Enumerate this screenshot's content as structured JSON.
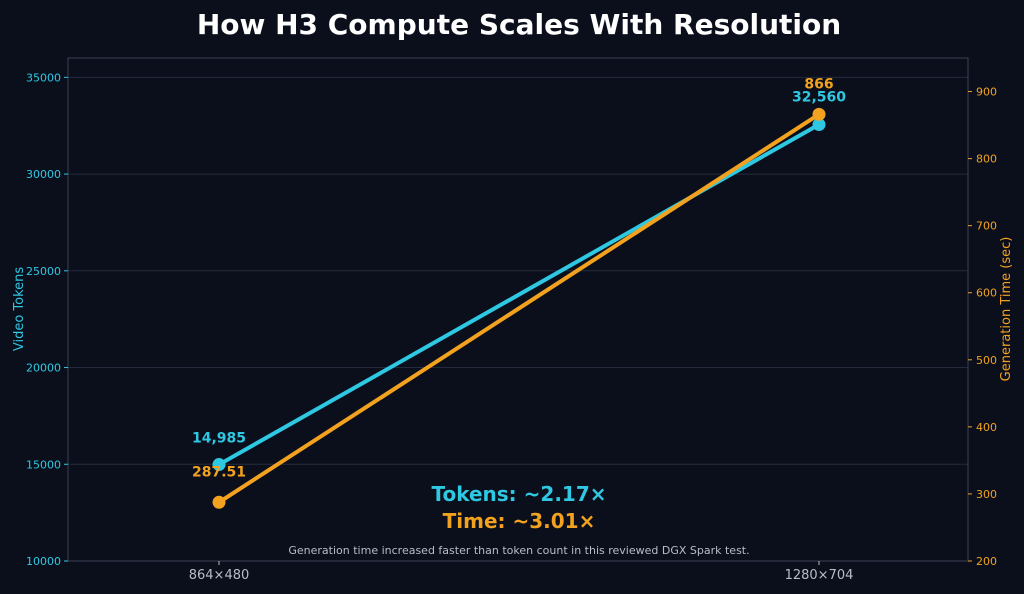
{
  "colors": {
    "background": "#0b0f1c",
    "grid": "#242b3d",
    "spine": "#3a4154",
    "tokens": "#2fc8e2",
    "time": "#f3a21f",
    "title": "#ffffff",
    "muted": "#b8bcc8"
  },
  "chart_data": {
    "type": "line",
    "title": "How H3 Compute Scales With Resolution",
    "categories": [
      "864×480",
      "1280×704"
    ],
    "grid": true,
    "y_left": {
      "label": "Video Tokens",
      "lim": [
        10000,
        36000
      ],
      "ticks": [
        10000,
        15000,
        20000,
        25000,
        30000,
        35000
      ]
    },
    "y_right": {
      "label": "Generation Time (sec)",
      "lim": [
        200,
        950
      ],
      "ticks": [
        200,
        300,
        400,
        500,
        600,
        700,
        800,
        900
      ]
    },
    "series": [
      {
        "axis": "left",
        "values": [
          14985,
          32560
        ],
        "labels": [
          "14,985",
          "32,560"
        ]
      },
      {
        "axis": "right",
        "values": [
          287.51,
          866
        ],
        "labels": [
          "287.51",
          "866"
        ]
      }
    ],
    "annotations": {
      "tokens_ratio": "Tokens: ~2.17×",
      "time_ratio": "Time: ~3.01×",
      "note": "Generation time increased faster than token count in this reviewed DGX Spark test."
    }
  }
}
